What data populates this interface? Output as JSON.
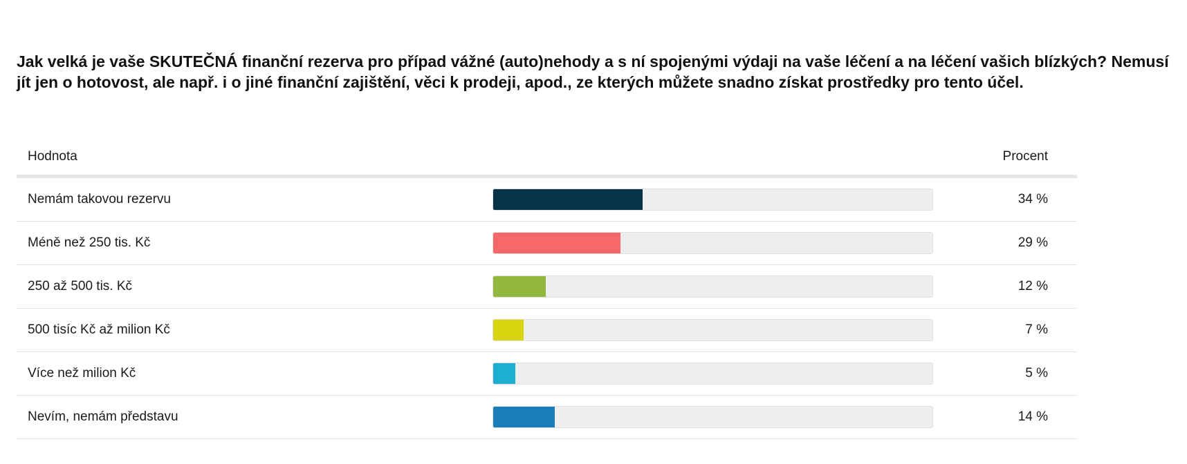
{
  "question": "Jak velká je vaše SKUTEČNÁ finanční rezerva pro případ vážné (auto)nehody a s ní spojenými výdaji na vaše léčení a na léčení vašich blízkých? Nemusí jít jen o hotovost, ale např. i o jiné finanční zajištění, věci k prodeji, apod., ze kterých můžete snadno získat prostředky pro tento účel.",
  "table": {
    "header_label": "Hodnota",
    "header_percent": "Procent"
  },
  "chart_data": {
    "type": "bar",
    "title": "Jak velká je vaše SKUTEČNÁ finanční rezerva pro případ vážné (auto)nehody a s ní spojenými výdaji na vaše léčení a na léčení vašich blízkých? Nemusí jít jen o hotovost, ale např. i o jiné finanční zajištění, věci k prodeji, apod., ze kterých můžete snadno získat prostředky pro tento účel.",
    "orientation": "horizontal",
    "xlim": [
      0,
      100
    ],
    "categories": [
      "Nemám takovou rezervu",
      "Méně než 250 tis. Kč",
      "250 až 500 tis. Kč",
      "500 tisíc Kč až milion Kč",
      "Více než milion Kč",
      "Nevím, nemám představu"
    ],
    "values": [
      34,
      29,
      12,
      7,
      5,
      14
    ],
    "value_labels": [
      "34 %",
      "29 %",
      "12 %",
      "7 %",
      "5 %",
      "14 %"
    ],
    "colors": [
      "#06324a",
      "#f76868",
      "#93b840",
      "#d8d510",
      "#1eafd0",
      "#1a7fb9"
    ]
  }
}
